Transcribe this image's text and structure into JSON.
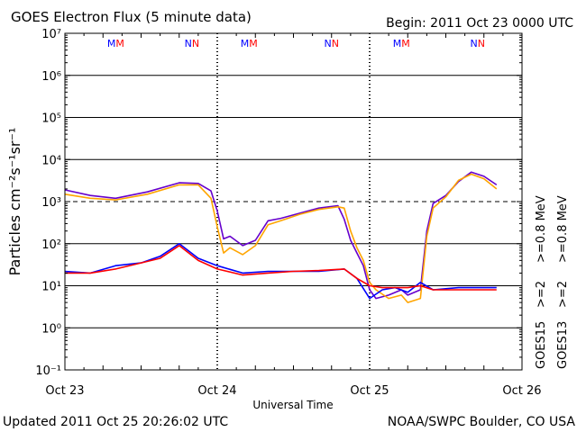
{
  "header": {
    "title": "GOES Electron Flux (5 minute data)",
    "begin": "Begin: 2011 Oct 23 0000 UTC"
  },
  "footer": {
    "updated": "Updated 2011 Oct 25 20:26:02 UTC",
    "credit": "NOAA/SWPC Boulder, CO USA"
  },
  "chart_data": {
    "type": "line",
    "title": "GOES Electron Flux (5 minute data)",
    "xlabel": "Universal Time",
    "ylabel": "Particles cm⁻²s⁻¹sr⁻¹",
    "y_scale": "log",
    "ylim": [
      0.1,
      10000000
    ],
    "y_ticks": [
      "10⁻¹",
      "10⁰",
      "10¹",
      "10²",
      "10³",
      "10⁴",
      "10⁵",
      "10⁶",
      "10⁷"
    ],
    "x_range": [
      "2011-10-23 00:00",
      "2011-10-26 00:00"
    ],
    "x_ticks": [
      "Oct 23",
      "Oct 24",
      "Oct 25",
      "Oct 26"
    ],
    "threshold": 1000,
    "grid": true,
    "satellite_markers": [
      {
        "label": "MM",
        "time": "2011-10-23 08:00"
      },
      {
        "label": "NN",
        "time": "2011-10-23 20:00"
      },
      {
        "label": "MM",
        "time": "2011-10-24 05:00"
      },
      {
        "label": "NN",
        "time": "2011-10-24 18:00"
      },
      {
        "label": "MM",
        "time": "2011-10-25 05:00"
      },
      {
        "label": "NN",
        "time": "2011-10-25 17:00"
      }
    ],
    "legend": {
      "placement": "right",
      "columns": [
        {
          "satellite": "GOES15",
          "items": [
            {
              "label": ">=2",
              "color": "#0000ff"
            },
            {
              "label": ">=0.8 MeV",
              "color": "#6600cc"
            }
          ]
        },
        {
          "satellite": "GOES13",
          "items": [
            {
              "label": ">=2",
              "color": "#ff0000"
            },
            {
              "label": ">=0.8 MeV",
              "color": "#ffa500"
            }
          ]
        }
      ]
    },
    "series": [
      {
        "name": "GOES15 >=0.8 MeV",
        "color": "#6600cc",
        "x": [
          "2011-10-23 00:00",
          "2011-10-23 04:00",
          "2011-10-23 08:00",
          "2011-10-23 13:00",
          "2011-10-23 18:00",
          "2011-10-23 21:00",
          "2011-10-23 23:00",
          "2011-10-24 00:00",
          "2011-10-24 01:00",
          "2011-10-24 02:00",
          "2011-10-24 04:00",
          "2011-10-24 06:00",
          "2011-10-24 08:00",
          "2011-10-24 10:00",
          "2011-10-24 13:00",
          "2011-10-24 16:00",
          "2011-10-24 19:00",
          "2011-10-24 20:00",
          "2011-10-24 21:00",
          "2011-10-24 22:00",
          "2011-10-24 23:00",
          "2011-10-25 00:00",
          "2011-10-25 01:00",
          "2011-10-25 03:00",
          "2011-10-25 05:00",
          "2011-10-25 06:00",
          "2011-10-25 08:00",
          "2011-10-25 09:00",
          "2011-10-25 10:00",
          "2011-10-25 12:00",
          "2011-10-25 14:00",
          "2011-10-25 16:00",
          "2011-10-25 18:00",
          "2011-10-25 20:00"
        ],
        "y": [
          1900,
          1400,
          1200,
          1700,
          2800,
          2700,
          1800,
          600,
          130,
          150,
          90,
          120,
          350,
          400,
          530,
          700,
          800,
          380,
          120,
          60,
          30,
          8,
          5,
          6,
          8,
          6,
          8,
          200,
          900,
          1400,
          3000,
          5000,
          4000,
          2500
        ]
      },
      {
        "name": "GOES13 >=0.8 MeV",
        "color": "#ffa500",
        "x": [
          "2011-10-23 00:00",
          "2011-10-23 04:00",
          "2011-10-23 08:00",
          "2011-10-23 13:00",
          "2011-10-23 18:00",
          "2011-10-23 21:00",
          "2011-10-23 23:00",
          "2011-10-24 00:00",
          "2011-10-24 01:00",
          "2011-10-24 02:00",
          "2011-10-24 04:00",
          "2011-10-24 06:00",
          "2011-10-24 08:00",
          "2011-10-24 10:00",
          "2011-10-24 13:00",
          "2011-10-24 16:00",
          "2011-10-24 19:00",
          "2011-10-24 20:00",
          "2011-10-24 21:00",
          "2011-10-24 22:00",
          "2011-10-24 23:00",
          "2011-10-25 00:00",
          "2011-10-25 01:00",
          "2011-10-25 03:00",
          "2011-10-25 05:00",
          "2011-10-25 06:00",
          "2011-10-25 08:00",
          "2011-10-25 09:00",
          "2011-10-25 10:00",
          "2011-10-25 12:00",
          "2011-10-25 14:00",
          "2011-10-25 16:00",
          "2011-10-25 18:00",
          "2011-10-25 20:00"
        ],
        "y": [
          1500,
          1200,
          1100,
          1500,
          2500,
          2500,
          1200,
          250,
          60,
          80,
          55,
          90,
          280,
          350,
          500,
          650,
          750,
          700,
          200,
          80,
          40,
          12,
          8,
          5,
          6,
          4,
          5,
          150,
          700,
          1300,
          3200,
          4500,
          3500,
          2000
        ]
      },
      {
        "name": "GOES15 >=2 MeV",
        "color": "#0000ff",
        "x": [
          "2011-10-23 00:00",
          "2011-10-23 04:00",
          "2011-10-23 08:00",
          "2011-10-23 12:00",
          "2011-10-23 15:00",
          "2011-10-23 18:00",
          "2011-10-23 21:00",
          "2011-10-24 00:00",
          "2011-10-24 04:00",
          "2011-10-24 08:00",
          "2011-10-24 12:00",
          "2011-10-24 16:00",
          "2011-10-24 20:00",
          "2011-10-24 22:00",
          "2011-10-25 00:00",
          "2011-10-25 02:00",
          "2011-10-25 04:00",
          "2011-10-25 06:00",
          "2011-10-25 08:00",
          "2011-10-25 10:00",
          "2011-10-25 14:00",
          "2011-10-25 18:00",
          "2011-10-25 20:00"
        ],
        "y": [
          22,
          20,
          30,
          35,
          50,
          100,
          45,
          30,
          20,
          22,
          22,
          22,
          25,
          15,
          5,
          8,
          9,
          7,
          12,
          8,
          9,
          9,
          9
        ]
      },
      {
        "name": "GOES13 >=2 MeV",
        "color": "#ff0000",
        "x": [
          "2011-10-23 00:00",
          "2011-10-23 04:00",
          "2011-10-23 08:00",
          "2011-10-23 12:00",
          "2011-10-23 15:00",
          "2011-10-23 18:00",
          "2011-10-23 21:00",
          "2011-10-24 00:00",
          "2011-10-24 04:00",
          "2011-10-24 08:00",
          "2011-10-24 12:00",
          "2011-10-24 16:00",
          "2011-10-24 20:00",
          "2011-10-24 22:00",
          "2011-10-25 00:00",
          "2011-10-25 02:00",
          "2011-10-25 04:00",
          "2011-10-25 06:00",
          "2011-10-25 08:00",
          "2011-10-25 10:00",
          "2011-10-25 14:00",
          "2011-10-25 18:00",
          "2011-10-25 20:00"
        ],
        "y": [
          20,
          20,
          25,
          35,
          45,
          90,
          40,
          25,
          18,
          20,
          22,
          23,
          25,
          15,
          10,
          9,
          9,
          9,
          10,
          8,
          8,
          8,
          8
        ]
      }
    ]
  }
}
